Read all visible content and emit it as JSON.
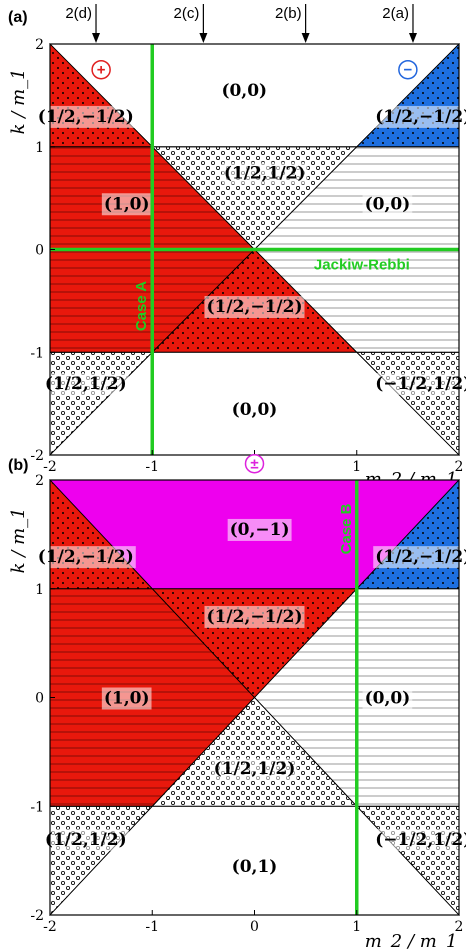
{
  "chart_data": [
    {
      "panel": "(a)",
      "type": "region-map",
      "x_label": "m_2 / m_1",
      "y_label": "k / m_1",
      "xlim": [
        -2,
        2
      ],
      "ylim": [
        -2,
        2
      ],
      "xticks": [
        "-2",
        "-1",
        "0",
        "1",
        "2"
      ],
      "yticks": [
        "-2",
        "-1",
        "0",
        "1",
        "2"
      ],
      "markers": [
        {
          "label": "2(d)",
          "x": -1.55
        },
        {
          "label": "2(c)",
          "x": -0.5
        },
        {
          "label": "2(b)",
          "x": 0.5
        },
        {
          "label": "2(a)",
          "x": 1.55
        }
      ],
      "lines": [
        {
          "label": "Case A",
          "orientation": "vertical",
          "value": -1,
          "color": "#22cc22"
        },
        {
          "label": "Jackiw-Rebbi",
          "orientation": "horizontal",
          "value": 0,
          "color": "#22cc22"
        }
      ],
      "symbols": [
        {
          "text": "+",
          "color": "#e02020",
          "x": -1.5,
          "y": 1.75
        },
        {
          "text": "−",
          "color": "#2266dd",
          "x": 1.5,
          "y": 1.75
        }
      ],
      "regions": [
        {
          "label": "(0,0)",
          "fill": "white",
          "polygon": [
            [
              -2,
              2
            ],
            [
              2,
              2
            ],
            [
              1,
              1
            ],
            [
              -1,
              1
            ]
          ],
          "lx": -0.1,
          "ly": 1.55
        },
        {
          "label": "(1/2,−1/2)",
          "fill": "red-dots",
          "polygon": [
            [
              -2,
              2
            ],
            [
              -1,
              1
            ],
            [
              -2,
              1
            ]
          ],
          "lx": -1.65,
          "ly": 1.3
        },
        {
          "label": "(1/2,−1/2)",
          "fill": "blue-dots",
          "polygon": [
            [
              2,
              2
            ],
            [
              2,
              1
            ],
            [
              1,
              1
            ]
          ],
          "lx": 1.65,
          "ly": 1.3
        },
        {
          "label": "(1,0)",
          "fill": "red-stripes",
          "polygon": [
            [
              -2,
              1
            ],
            [
              -1,
              1
            ],
            [
              0,
              0
            ],
            [
              -2,
              0
            ]
          ],
          "lx": -1.25,
          "ly": 0.45
        },
        {
          "label": "(1/2,1/2)",
          "fill": "dots",
          "polygon": [
            [
              -1,
              1
            ],
            [
              1,
              1
            ],
            [
              0,
              0
            ]
          ],
          "lx": 0.1,
          "ly": 0.75
        },
        {
          "label": "(0,0)",
          "fill": "stripes",
          "polygon": [
            [
              1,
              1
            ],
            [
              2,
              1
            ],
            [
              2,
              0
            ],
            [
              0,
              0
            ]
          ],
          "lx": 1.3,
          "ly": 0.45
        },
        {
          "label": "",
          "fill": "red-stripes",
          "polygon": [
            [
              -2,
              0
            ],
            [
              0,
              0
            ],
            [
              -1,
              -1
            ],
            [
              -2,
              -1
            ]
          ],
          "lx": -1.5,
          "ly": -0.5
        },
        {
          "label": "(1/2,−1/2)",
          "fill": "red-dots",
          "polygon": [
            [
              0,
              0
            ],
            [
              1,
              -1
            ],
            [
              -1,
              -1
            ]
          ],
          "lx": 0.0,
          "ly": -0.55
        },
        {
          "label": "",
          "fill": "stripes",
          "polygon": [
            [
              0,
              0
            ],
            [
              2,
              0
            ],
            [
              2,
              -1
            ],
            [
              1,
              -1
            ]
          ],
          "lx": 1.5,
          "ly": -0.5
        },
        {
          "label": "(1/2,1/2)",
          "fill": "dots",
          "polygon": [
            [
              -2,
              -1
            ],
            [
              -1,
              -1
            ],
            [
              -2,
              -2
            ]
          ],
          "lx": -1.65,
          "ly": -1.3
        },
        {
          "label": "(−1/2,1/2)",
          "fill": "dots",
          "polygon": [
            [
              2,
              -1
            ],
            [
              1,
              -1
            ],
            [
              2,
              -2
            ]
          ],
          "lx": 1.65,
          "ly": -1.3
        },
        {
          "label": "(0,0)",
          "fill": "white",
          "polygon": [
            [
              -1,
              -1
            ],
            [
              1,
              -1
            ],
            [
              2,
              -2
            ],
            [
              -2,
              -2
            ]
          ],
          "lx": 0.0,
          "ly": -1.55
        }
      ]
    },
    {
      "panel": "(b)",
      "type": "region-map",
      "x_label": "m_2 / m_1",
      "y_label": "k / m_1",
      "xlim": [
        -2,
        2
      ],
      "ylim": [
        -2,
        2
      ],
      "xticks": [
        "-2",
        "-1",
        "0",
        "1",
        "2"
      ],
      "yticks": [
        "-2",
        "-1",
        "0",
        "1",
        "2"
      ],
      "lines": [
        {
          "label": "Case B",
          "orientation": "vertical",
          "value": 1,
          "color": "#22cc22"
        }
      ],
      "symbols": [
        {
          "text": "±",
          "color": "#dd22dd",
          "x": 0.0,
          "y": 2.15
        }
      ],
      "regions": [
        {
          "label": "(0,−1)",
          "fill": "magenta",
          "polygon": [
            [
              -2,
              2
            ],
            [
              2,
              2
            ],
            [
              1,
              1
            ],
            [
              -1,
              1
            ]
          ],
          "lx": 0.05,
          "ly": 1.55
        },
        {
          "label": "(1/2,−1/2)",
          "fill": "red-dots",
          "polygon": [
            [
              -2,
              2
            ],
            [
              -1,
              1
            ],
            [
              -2,
              1
            ]
          ],
          "lx": -1.65,
          "ly": 1.3
        },
        {
          "label": "(1/2,−1/2)",
          "fill": "blue-dots",
          "polygon": [
            [
              2,
              2
            ],
            [
              2,
              1
            ],
            [
              1,
              1
            ]
          ],
          "lx": 1.65,
          "ly": 1.3
        },
        {
          "label": "(1/2,−1/2)",
          "fill": "red-dots",
          "polygon": [
            [
              -1,
              1
            ],
            [
              1,
              1
            ],
            [
              0,
              0
            ]
          ],
          "lx": 0.0,
          "ly": 0.75
        },
        {
          "label": "(1,0)",
          "fill": "red-stripes",
          "polygon": [
            [
              -2,
              1
            ],
            [
              -1,
              1
            ],
            [
              0,
              0
            ],
            [
              -1,
              -1
            ],
            [
              -2,
              -1
            ]
          ],
          "lx": -1.25,
          "ly": 0.0
        },
        {
          "label": "(0,0)",
          "fill": "stripes",
          "polygon": [
            [
              1,
              1
            ],
            [
              2,
              1
            ],
            [
              2,
              -1
            ],
            [
              1,
              -1
            ],
            [
              0,
              0
            ]
          ],
          "lx": 1.3,
          "ly": 0.0
        },
        {
          "label": "(1/2,1/2)",
          "fill": "dots",
          "polygon": [
            [
              0,
              0
            ],
            [
              1,
              -1
            ],
            [
              -1,
              -1
            ]
          ],
          "lx": 0.0,
          "ly": -0.65
        },
        {
          "label": "(1/2,1/2)",
          "fill": "dots",
          "polygon": [
            [
              -2,
              -1
            ],
            [
              -1,
              -1
            ],
            [
              -2,
              -2
            ]
          ],
          "lx": -1.65,
          "ly": -1.3
        },
        {
          "label": "(−1/2,1/2)",
          "fill": "dots",
          "polygon": [
            [
              2,
              -1
            ],
            [
              1,
              -1
            ],
            [
              2,
              -2
            ]
          ],
          "lx": 1.65,
          "ly": -1.3
        },
        {
          "label": "(0,1)",
          "fill": "white",
          "polygon": [
            [
              -1,
              -1
            ],
            [
              1,
              -1
            ],
            [
              2,
              -2
            ],
            [
              -2,
              -2
            ]
          ],
          "lx": 0.0,
          "ly": -1.55
        }
      ]
    }
  ]
}
